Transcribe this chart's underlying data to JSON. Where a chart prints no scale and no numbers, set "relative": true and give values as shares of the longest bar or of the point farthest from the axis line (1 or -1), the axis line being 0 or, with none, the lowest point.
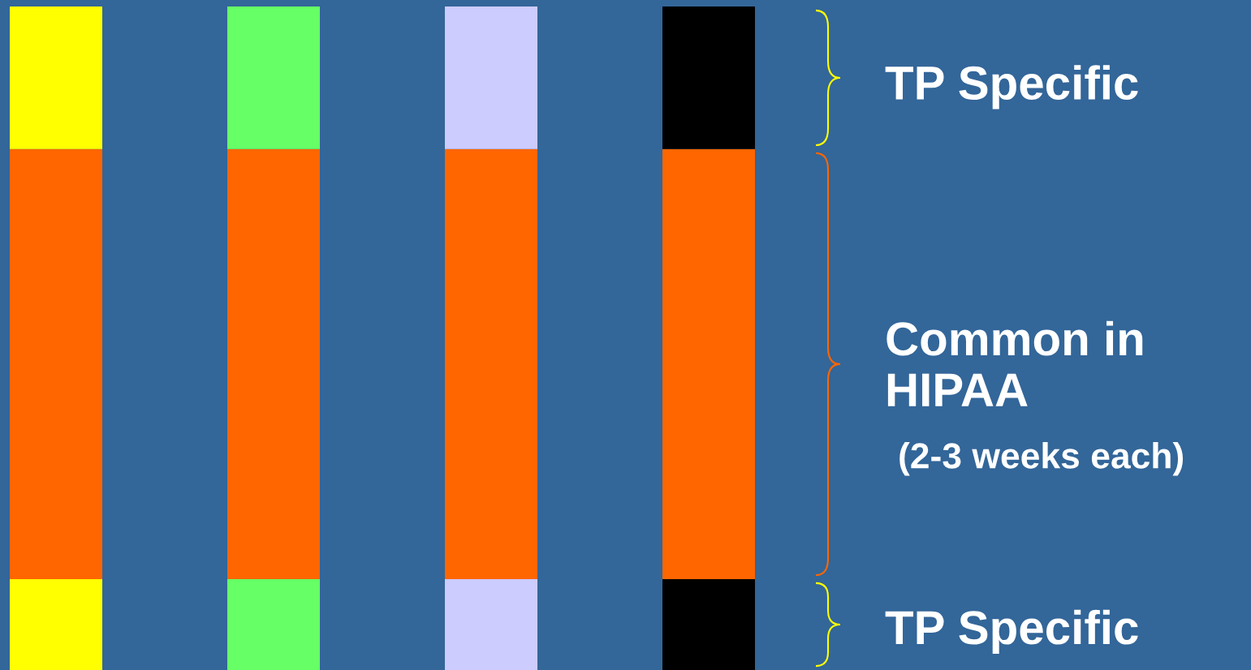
{
  "chart_data": {
    "type": "bar",
    "stacked": true,
    "relative": true,
    "categories": [
      null,
      null,
      null,
      null
    ],
    "series": [
      {
        "colors": [
          "#ffff00",
          "#66ff66",
          "#ccccff",
          "#000000"
        ],
        "values": [
          0.137,
          0.137,
          0.137,
          0.137
        ]
      },
      {
        "colors": [
          "#ff6600",
          "#ff6600",
          "#ff6600",
          "#ff6600"
        ],
        "values": [
          0.648,
          0.648,
          0.648,
          0.648
        ]
      },
      {
        "colors": [
          "#ffff00",
          "#66ff66",
          "#ccccff",
          "#000000"
        ],
        "values": [
          0.215,
          0.215,
          0.215,
          0.215
        ]
      }
    ],
    "annotations": [
      "TP Specific",
      "Common in\nHIPAA",
      "(2-3 weeks each)",
      "TP Specific"
    ]
  }
}
